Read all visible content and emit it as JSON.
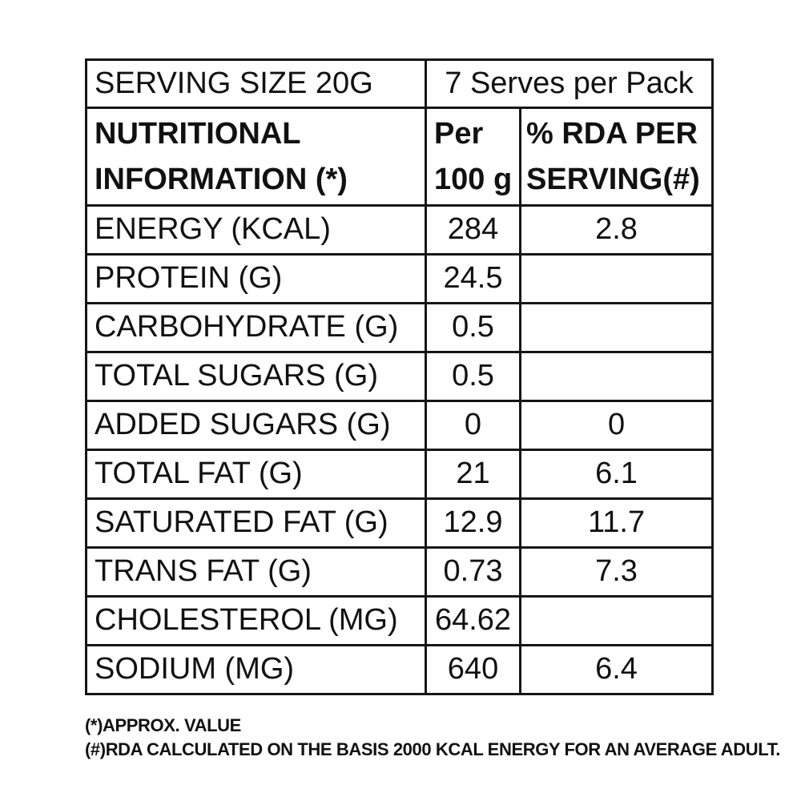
{
  "table": {
    "serving_row": {
      "label": "SERVING SIZE 20G",
      "serves": "7 Serves per Pack"
    },
    "header": {
      "col1_line1": "NUTRITIONAL",
      "col1_line2": "INFORMATION (*)",
      "col2_line1": "Per",
      "col2_line2": "100 g",
      "col3_line1": "% RDA PER",
      "col3_line2": "SERVING(#)"
    },
    "rows": [
      {
        "label": "ENERGY (KCAL)",
        "per100": "284",
        "rda": "2.8"
      },
      {
        "label": "PROTEIN (G)",
        "per100": "24.5",
        "rda": ""
      },
      {
        "label": "CARBOHYDRATE (G)",
        "per100": "0.5",
        "rda": ""
      },
      {
        "label": "TOTAL SUGARS (G)",
        "per100": "0.5",
        "rda": ""
      },
      {
        "label": "ADDED SUGARS (G)",
        "per100": "0",
        "rda": "0"
      },
      {
        "label": "TOTAL FAT (G)",
        "per100": "21",
        "rda": "6.1"
      },
      {
        "label": "SATURATED FAT (G)",
        "per100": "12.9",
        "rda": "11.7"
      },
      {
        "label": "TRANS FAT (G)",
        "per100": "0.73",
        "rda": "7.3"
      },
      {
        "label": "CHOLESTEROL (MG)",
        "per100": "64.62",
        "rda": ""
      },
      {
        "label": "SODIUM (MG)",
        "per100": "640",
        "rda": "6.4"
      }
    ]
  },
  "footnotes": {
    "line1": "(*)APPROX. VALUE",
    "line2": "(#)RDA CALCULATED ON THE BASIS 2000 KCAL ENERGY FOR AN AVERAGE ADULT."
  },
  "colors": {
    "border": "#161616",
    "text": "#111111",
    "background": "#ffffff"
  }
}
